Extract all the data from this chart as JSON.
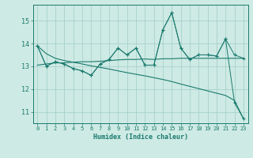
{
  "xlabel": "Humidex (Indice chaleur)",
  "x_values": [
    0,
    1,
    2,
    3,
    4,
    5,
    6,
    7,
    8,
    9,
    10,
    11,
    12,
    13,
    14,
    15,
    16,
    17,
    18,
    19,
    20,
    21,
    22,
    23
  ],
  "line_zigzag": [
    13.9,
    13.0,
    13.2,
    13.1,
    12.9,
    12.8,
    12.6,
    13.1,
    13.3,
    13.8,
    13.5,
    13.8,
    13.05,
    13.05,
    14.6,
    15.35,
    13.8,
    13.3,
    13.5,
    13.5,
    13.45,
    14.2,
    13.5,
    13.35
  ],
  "line_zigzag_dip": [
    13.9,
    13.0,
    13.2,
    13.1,
    12.9,
    12.8,
    12.6,
    13.1,
    13.3,
    13.8,
    13.5,
    13.8,
    13.05,
    13.05,
    14.6,
    15.35,
    13.8,
    13.3,
    13.5,
    13.5,
    13.45,
    14.2,
    11.4,
    10.7
  ],
  "line_flat": [
    13.05,
    13.1,
    13.15,
    13.15,
    13.18,
    13.2,
    13.2,
    13.22,
    13.25,
    13.28,
    13.3,
    13.3,
    13.32,
    13.3,
    13.33,
    13.33,
    13.35,
    13.35,
    13.35,
    13.35,
    13.35,
    13.35,
    13.35,
    13.35
  ],
  "line_decline": [
    13.9,
    13.55,
    13.35,
    13.25,
    13.18,
    13.1,
    13.02,
    12.95,
    12.88,
    12.8,
    12.72,
    12.65,
    12.58,
    12.5,
    12.42,
    12.33,
    12.22,
    12.12,
    12.02,
    11.92,
    11.82,
    11.72,
    11.5,
    10.7
  ],
  "ylim": [
    10.5,
    15.7
  ],
  "yticks": [
    11,
    12,
    13,
    14,
    15
  ],
  "xticks": [
    0,
    1,
    2,
    3,
    4,
    5,
    6,
    7,
    8,
    9,
    10,
    11,
    12,
    13,
    14,
    15,
    16,
    17,
    18,
    19,
    20,
    21,
    22,
    23
  ],
  "color": "#1a7a6e",
  "bg_color": "#ceeae4",
  "grid_color": "#a0cdc6",
  "marker": "+"
}
